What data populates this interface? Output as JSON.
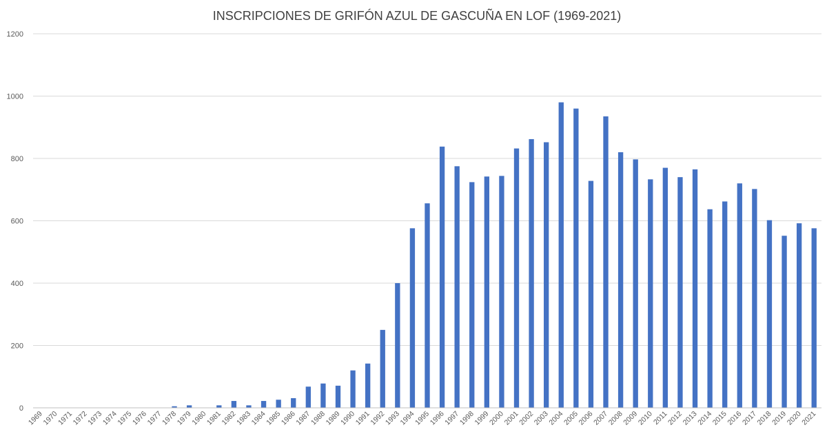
{
  "chart_data": {
    "type": "bar",
    "title": "INSCRIPCIONES DE GRIFÓN AZUL DE GASCUÑA EN LOF (1969-2021)",
    "xlabel": "",
    "ylabel": "",
    "ylim": [
      0,
      1200
    ],
    "y_ticks": [
      0,
      200,
      400,
      600,
      800,
      1000,
      1200
    ],
    "grid": true,
    "legend": "none",
    "bar_color": "#4472c4",
    "categories": [
      "1969",
      "1970",
      "1971",
      "1972",
      "1973",
      "1974",
      "1975",
      "1976",
      "1977",
      "1978",
      "1979",
      "1980",
      "1981",
      "1982",
      "1983",
      "1984",
      "1985",
      "1986",
      "1987",
      "1988",
      "1989",
      "1990",
      "1991",
      "1992",
      "1993",
      "1994",
      "1995",
      "1996",
      "1997",
      "1998",
      "1999",
      "2000",
      "2001",
      "2002",
      "2003",
      "2004",
      "2005",
      "2006",
      "2007",
      "2008",
      "2009",
      "2010",
      "2011",
      "2012",
      "2013",
      "2014",
      "2015",
      "2016",
      "2017",
      "2018",
      "2019",
      "2020",
      "2021"
    ],
    "values": [
      0,
      0,
      0,
      0,
      0,
      0,
      0,
      0,
      0,
      5,
      8,
      0,
      8,
      22,
      8,
      22,
      26,
      31,
      68,
      78,
      71,
      120,
      142,
      250,
      400,
      576,
      656,
      838,
      775,
      724,
      742,
      744,
      832,
      862,
      852,
      980,
      960,
      728,
      935,
      820,
      797,
      733,
      770,
      740,
      765,
      637,
      662,
      720,
      702,
      602,
      552,
      592,
      576
    ]
  }
}
